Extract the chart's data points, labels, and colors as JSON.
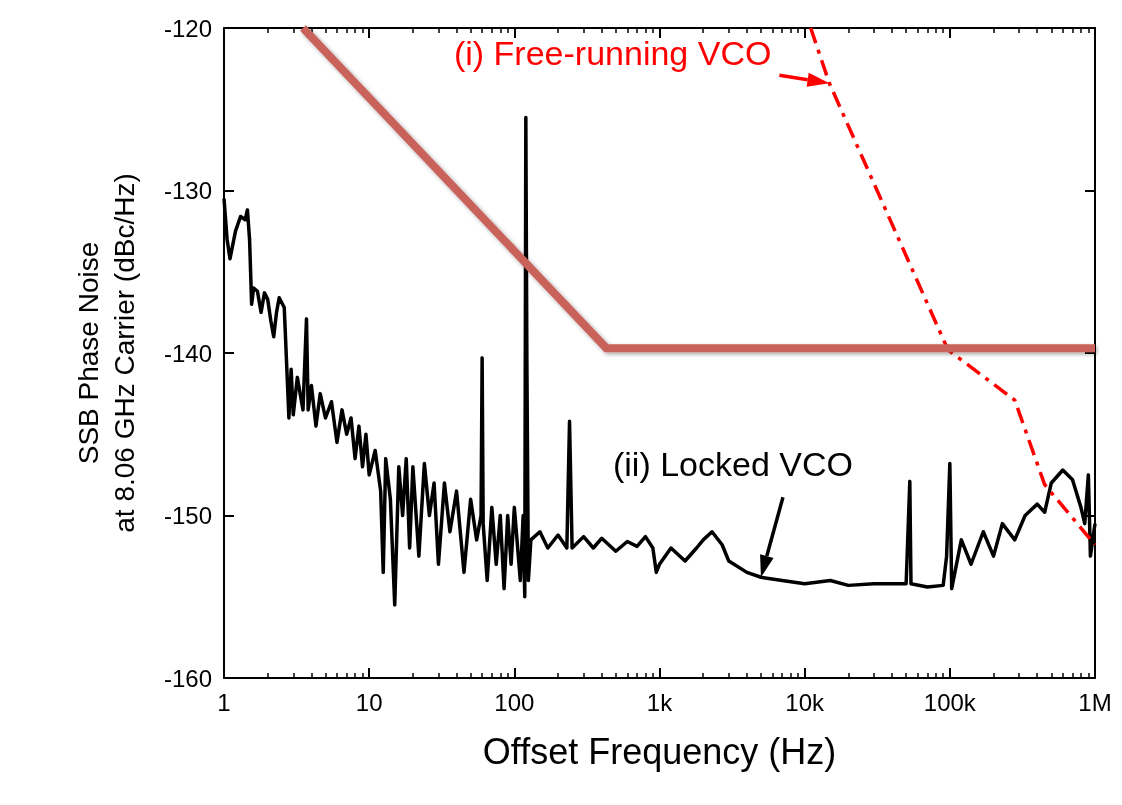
{
  "chart_data": {
    "type": "line",
    "xlabel": "Offset Frequency (Hz)",
    "ylabel": "SSB Phase Noise\nat 8.06 GHz Carrier (dBc/Hz)",
    "log": "x",
    "grid": false,
    "marker": "none",
    "xlim": [
      1,
      1000000
    ],
    "xticks": [
      1,
      10,
      100,
      {
        "value": 1000,
        "label": "1k"
      },
      {
        "value": 10000,
        "label": "10k"
      },
      {
        "value": 100000,
        "label": "100k"
      },
      {
        "value": 1000000,
        "label": "1M"
      }
    ],
    "ylim": [
      -160,
      -120
    ],
    "yticks": [
      -160,
      -150,
      -140,
      -130,
      -120
    ],
    "series": [
      {
        "color": "#000000",
        "line_style": "solid",
        "x": [
          1,
          1.05,
          1.1,
          1.2,
          1.3,
          1.4,
          1.45,
          1.5,
          1.55,
          1.6,
          1.7,
          1.8,
          1.9,
          2.0,
          2.1,
          2.2,
          2.3,
          2.4,
          2.6,
          2.8,
          2.9,
          3.0,
          3.2,
          3.5,
          3.7,
          3.8,
          4.0,
          4.3,
          4.6,
          5.0,
          5.5,
          6.0,
          6.5,
          7.0,
          7.5,
          8.0,
          8.5,
          9.0,
          9.5,
          10,
          11,
          12,
          12.5,
          13,
          14,
          15,
          16,
          17,
          18,
          19,
          20,
          22,
          24,
          26,
          28,
          30,
          33,
          36,
          40,
          45,
          50,
          55,
          59,
          60,
          61,
          65,
          70,
          75,
          80,
          85,
          90,
          95,
          100,
          110,
          115,
          118,
          120,
          122,
          125,
          130,
          150,
          170,
          200,
          230,
          240,
          250,
          300,
          350,
          400,
          500,
          600,
          700,
          800,
          900,
          950,
          1000,
          1200,
          1500,
          1800,
          2000,
          2300,
          2700,
          3000,
          4000,
          5000,
          7000,
          10000,
          15000,
          20000,
          30000,
          50000,
          53000,
          54000,
          70000,
          90000,
          95000,
          100000,
          103000,
          120000,
          140000,
          170000,
          200000,
          230000,
          280000,
          330000,
          400000,
          450000,
          500000,
          600000,
          700000,
          800000,
          850000,
          900000,
          930000,
          1000000
        ],
        "values": [
          -130.5,
          -133,
          -134.2,
          -132.5,
          -131.6,
          -131.8,
          -131.2,
          -133,
          -137,
          -136,
          -136.2,
          -137.5,
          -136.3,
          -136.7,
          -138,
          -139,
          -137.5,
          -136.6,
          -137.2,
          -144,
          -141,
          -143.8,
          -141.5,
          -143.5,
          -137.9,
          -143.5,
          -142,
          -144.5,
          -142.5,
          -144,
          -143,
          -145.5,
          -143.5,
          -145,
          -144,
          -146.5,
          -144.5,
          -147,
          -145,
          -147.5,
          -146,
          -148.5,
          -153.5,
          -146.5,
          -149,
          -155.5,
          -147,
          -150,
          -146.5,
          -152,
          -147,
          -152.5,
          -146.8,
          -150,
          -148,
          -153,
          -148,
          -151,
          -148.5,
          -153.5,
          -149,
          -151.5,
          -150,
          -140.3,
          -150.5,
          -154,
          -149.5,
          -153,
          -150,
          -154.5,
          -150,
          -153,
          -149.5,
          -154,
          -150,
          -155,
          -125.5,
          -140.5,
          -154,
          -151.5,
          -151,
          -152,
          -151.2,
          -152,
          -144.2,
          -152,
          -151.3,
          -152,
          -151.4,
          -152.2,
          -151.6,
          -151.9,
          -151.3,
          -152,
          -153.5,
          -153,
          -152,
          -152.8,
          -152,
          -151.5,
          -151,
          -151.8,
          -152.8,
          -153.5,
          -153.8,
          -154,
          -154.2,
          -154,
          -154.3,
          -154.2,
          -154.2,
          -147.9,
          -154.2,
          -154.4,
          -154.3,
          -152.5,
          -146.8,
          -154.5,
          -151.5,
          -153,
          -151,
          -152.5,
          -150.5,
          -151.5,
          -150,
          -149.3,
          -149.8,
          -148,
          -147.2,
          -147.8,
          -149.5,
          -150.5,
          -147.5,
          -152.5,
          -150.5
        ]
      },
      {
        "color": "#ff0000",
        "line_style": "dashed",
        "x": [
          11000,
          14800,
          97000,
          280000,
          450000,
          1000000
        ],
        "values": [
          -120,
          -123.4,
          -139.8,
          -142.9,
          -148.1,
          -151.8
        ]
      },
      {
        "color": "#c8625a",
        "line_style": "solid",
        "x": [
          3.5,
          430,
          1000000
        ],
        "values": [
          -120,
          -139.7,
          -139.7
        ]
      }
    ],
    "annotations": [
      {
        "text": "(i) Free-running VCO",
        "x": 14800,
        "y": -123.4
      },
      {
        "text": "(ii) Locked VCO",
        "x": 5000,
        "y": -153.8
      }
    ]
  }
}
